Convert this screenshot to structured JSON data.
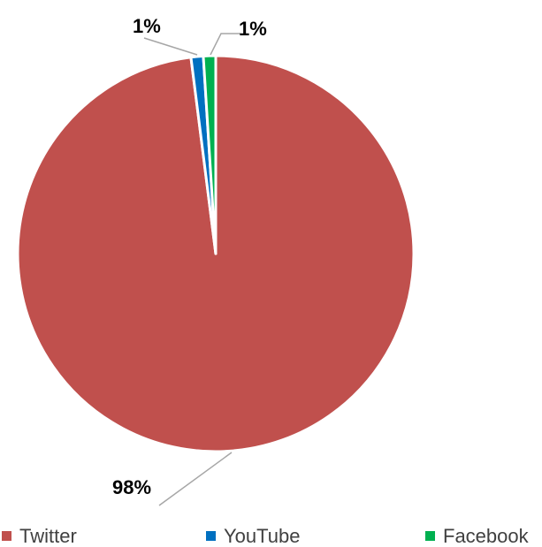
{
  "chart_data": {
    "type": "pie",
    "title": "",
    "categories": [
      "Twitter",
      "YouTube",
      "Facebook"
    ],
    "values": [
      98,
      1,
      1
    ],
    "data_labels": [
      "98%",
      "1%",
      "1%"
    ],
    "colors": [
      "#c0504d",
      "#0070c0",
      "#00b050"
    ],
    "legend": {
      "position": "bottom",
      "entries": [
        "Twitter",
        "YouTube",
        "Facebook"
      ]
    }
  }
}
